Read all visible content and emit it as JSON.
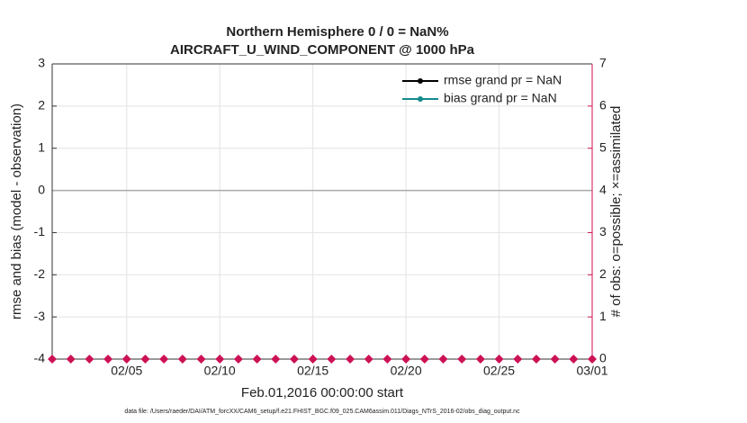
{
  "chart_data": {
    "type": "line",
    "title": "Northern Hemisphere 0 / 0 = NaN%",
    "subtitle": "AIRCRAFT_U_WIND_COMPONENT @ 1000 hPa",
    "ylabel": "rmse and bias (model - observation)",
    "y2label": "# of obs: o=possible; ×=assimilated",
    "xlabel": "Feb.01,2016 00:00:00 start",
    "footnote": "data file: /Users/raeder/DAI/ATM_forcXX/CAM6_setup/f.e21.FHIST_BGC.f09_025.CAM6assim.011/Diags_NTrS_2016-02/obs_diag_output.nc",
    "categories": [
      null,
      null,
      null,
      null,
      "02/05",
      null,
      null,
      null,
      null,
      "02/10",
      null,
      null,
      null,
      null,
      "02/15",
      null,
      null,
      null,
      null,
      "02/20",
      null,
      null,
      null,
      null,
      "02/25",
      null,
      null,
      null,
      null,
      "03/01"
    ],
    "ylim": [
      -4,
      3
    ],
    "yticks": [
      -4,
      -3,
      -2,
      -1,
      0,
      1,
      2,
      3
    ],
    "y2lim": [
      0,
      7
    ],
    "y2ticks": [
      0,
      1,
      2,
      3,
      4,
      5,
      6,
      7
    ],
    "y2color": "#cc1155",
    "grid": true,
    "zero_line": 0,
    "legend": "upper right",
    "legend_text_color": "#1fa8dc",
    "series": [
      {
        "name": "rmse grand pr = NaN",
        "color": "#000000",
        "values": [
          null,
          null,
          null,
          null,
          null,
          null,
          null,
          null,
          null,
          null,
          null,
          null,
          null,
          null,
          null,
          null,
          null,
          null,
          null,
          null,
          null,
          null,
          null,
          null,
          null,
          null,
          null,
          null,
          null,
          null
        ]
      },
      {
        "name": "bias grand pr = NaN",
        "color": "#148a8c",
        "values": [
          null,
          null,
          null,
          null,
          null,
          null,
          null,
          null,
          null,
          null,
          null,
          null,
          null,
          null,
          null,
          null,
          null,
          null,
          null,
          null,
          null,
          null,
          null,
          null,
          null,
          null,
          null,
          null,
          null,
          null
        ]
      },
      {
        "color": "#cc1155",
        "axis": "y2",
        "marker": "diamond",
        "values": [
          0,
          0,
          0,
          0,
          0,
          0,
          0,
          0,
          0,
          0,
          0,
          0,
          0,
          0,
          0,
          0,
          0,
          0,
          0,
          0,
          0,
          0,
          0,
          0,
          0,
          0,
          0,
          0,
          0,
          0
        ]
      }
    ]
  }
}
